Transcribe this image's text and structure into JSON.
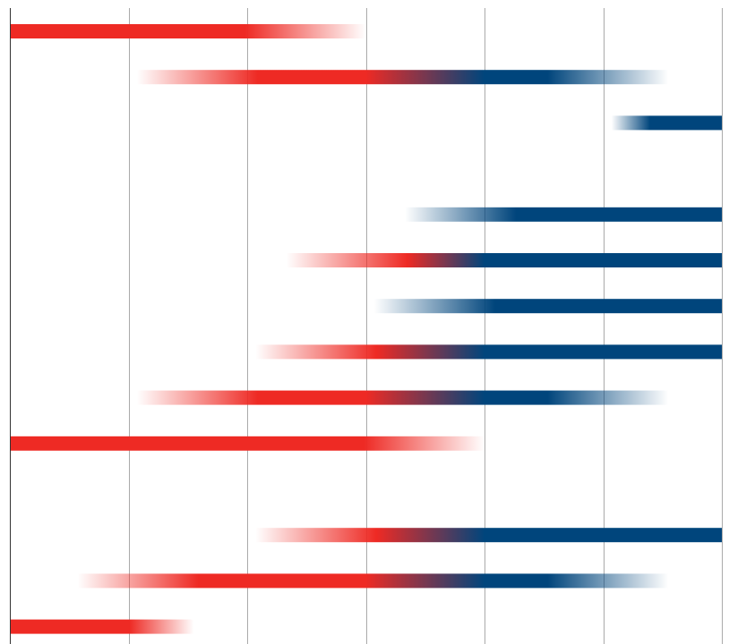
{
  "chart_data": {
    "type": "bar",
    "title": "",
    "xlabel": "",
    "ylabel": "",
    "xlim": [
      0,
      6
    ],
    "x_gridlines": [
      0,
      1,
      2,
      3,
      4,
      5,
      6
    ],
    "y_orientation": "rows-top-to-bottom",
    "colors": {
      "red": "#ee2a24",
      "blue": "#00457c",
      "gridline": "#aaaaaa",
      "axis": "#333333",
      "background": "#ffffff"
    },
    "rows": [
      {
        "start": 0.0,
        "end": 3.0,
        "fade_start": false,
        "fade_end": true,
        "color_start": "red",
        "color_end": "red"
      },
      {
        "start": 1.07,
        "end": 5.55,
        "fade_start": true,
        "fade_end": true,
        "color_start": "red",
        "color_end": "blue"
      },
      {
        "start": 5.07,
        "end": 6.0,
        "fade_start": true,
        "fade_end": false,
        "color_start": "blue",
        "color_end": "blue"
      },
      null,
      {
        "start": 3.33,
        "end": 6.0,
        "fade_start": true,
        "fade_end": false,
        "color_start": "blue",
        "color_end": "blue"
      },
      {
        "start": 2.33,
        "end": 6.0,
        "fade_start": true,
        "fade_end": false,
        "color_start": "red",
        "color_end": "blue"
      },
      {
        "start": 3.07,
        "end": 6.0,
        "fade_start": true,
        "fade_end": false,
        "color_start": "blue",
        "color_end": "blue"
      },
      {
        "start": 2.07,
        "end": 6.0,
        "fade_start": true,
        "fade_end": false,
        "color_start": "red",
        "color_end": "blue"
      },
      {
        "start": 1.07,
        "end": 5.55,
        "fade_start": true,
        "fade_end": true,
        "color_start": "red",
        "color_end": "blue"
      },
      {
        "start": 0.0,
        "end": 4.0,
        "fade_start": false,
        "fade_end": true,
        "color_start": "red",
        "color_end": "red"
      },
      null,
      {
        "start": 2.07,
        "end": 6.0,
        "fade_start": true,
        "fade_end": false,
        "color_start": "red",
        "color_end": "blue"
      },
      {
        "start": 0.57,
        "end": 5.55,
        "fade_start": true,
        "fade_end": true,
        "color_start": "red",
        "color_end": "blue"
      },
      {
        "start": 0.0,
        "end": 1.55,
        "fade_start": false,
        "fade_end": true,
        "color_start": "red",
        "color_end": "red"
      }
    ]
  }
}
